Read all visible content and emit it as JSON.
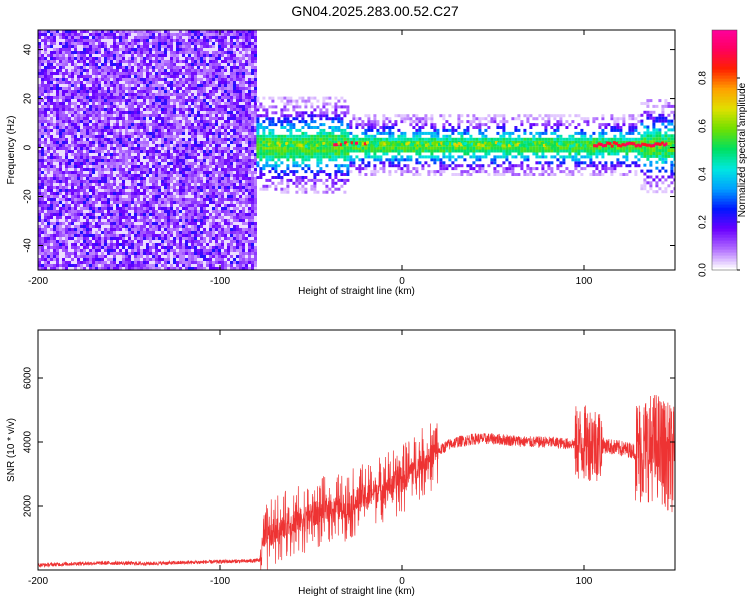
{
  "figure": {
    "title": "GN04.2025.283.00.52.C27"
  },
  "chart_data": [
    {
      "type": "heatmap",
      "title": "GN04.2025.283.00.52.C27",
      "xlabel": "Height of straight line (km)",
      "ylabel": "Frequency (Hz)",
      "xlim": [
        -200,
        150
      ],
      "ylim": [
        -50,
        48
      ],
      "xticks": [
        -200,
        -100,
        0,
        100
      ],
      "yticks": [
        -40,
        -20,
        0,
        20,
        40
      ],
      "colorbar": {
        "label": "Normalized spectral amplitude",
        "range": [
          0,
          1
        ],
        "ticks": [
          "0.0",
          "0.2",
          "0.4",
          "0.6",
          "0.8"
        ],
        "colormap": [
          "#ffffff",
          "#b06cff",
          "#6a00ff",
          "#0018ff",
          "#00a0ff",
          "#00e8e0",
          "#00e060",
          "#70e000",
          "#e0e000",
          "#ffa000",
          "#ff2000",
          "#ff0060",
          "#ff00a0"
        ]
      },
      "regions": [
        {
          "x_range": [
            -200,
            -80
          ],
          "description_level": 0.12,
          "signal": "broadband noise"
        },
        {
          "x_range": [
            -80,
            150
          ],
          "center_freq_hz": 0,
          "band_width_hz": 8,
          "level": 0.5
        }
      ]
    },
    {
      "type": "line",
      "xlabel": "Height of straight line (km)",
      "ylabel": "SNR (10 * v/v)",
      "xlim": [
        -200,
        150
      ],
      "ylim": [
        0,
        7500
      ],
      "xticks": [
        -200,
        -100,
        0,
        100
      ],
      "yticks": [
        2000,
        4000,
        6000
      ],
      "series_color": "#ee3333",
      "series": [
        {
          "x": [
            -200,
            -180,
            -160,
            -140,
            -120,
            -100,
            -85,
            -78,
            -76,
            -70,
            -60,
            -50,
            -40,
            -30,
            -20,
            -10,
            0,
            5,
            10,
            15,
            20,
            25,
            30,
            40,
            50,
            60,
            70,
            80,
            90,
            100,
            105,
            110,
            115,
            120,
            125,
            130,
            135,
            140,
            145,
            150
          ],
          "values": [
            150,
            200,
            220,
            200,
            230,
            260,
            280,
            300,
            900,
            1200,
            1500,
            1700,
            1900,
            2000,
            2300,
            2600,
            2800,
            3100,
            3300,
            3500,
            3700,
            3900,
            4000,
            4100,
            4100,
            4050,
            4000,
            4000,
            3950,
            3950,
            4000,
            3900,
            3850,
            3800,
            3750,
            3700,
            3800,
            3900,
            3600,
            3400
          ]
        }
      ]
    }
  ]
}
